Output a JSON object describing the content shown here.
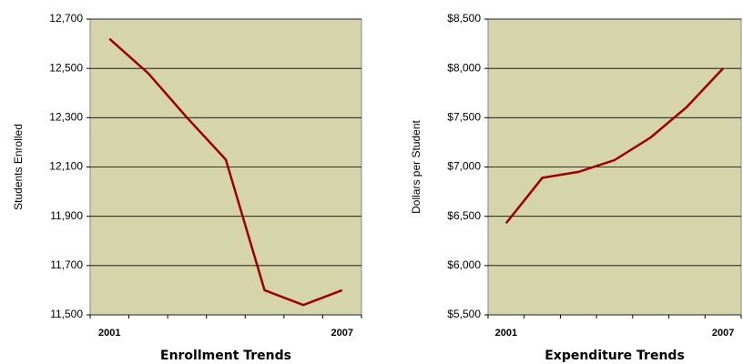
{
  "chart_data": [
    {
      "type": "line",
      "title": "Enrollment Trends",
      "y_label": "Students Enrolled",
      "categories": [
        "2001",
        null,
        null,
        null,
        null,
        null,
        "2007"
      ],
      "series": [
        {
          "name": "Students Enrolled",
          "color": "#990000",
          "values": [
            12620,
            12480,
            12300,
            12130,
            11600,
            11540,
            11600
          ]
        }
      ],
      "ylim": [
        11500,
        12700
      ],
      "yticks": [
        {
          "value": 11500,
          "label": "11,500"
        },
        {
          "value": 11700,
          "label": "11,700"
        },
        {
          "value": 11900,
          "label": "11,900"
        },
        {
          "value": 12100,
          "label": "12,100"
        },
        {
          "value": 12300,
          "label": "12,300"
        },
        {
          "value": 12500,
          "label": "12,500"
        },
        {
          "value": 12700,
          "label": "12,700"
        }
      ],
      "grid": true,
      "plot_color": "#d6d4aa"
    },
    {
      "type": "line",
      "title": "Expenditure Trends",
      "y_label": "Dollars per Student",
      "categories": [
        "2001",
        null,
        null,
        null,
        null,
        null,
        "2007"
      ],
      "series": [
        {
          "name": "Dollars per Student",
          "color": "#990000",
          "values": [
            6430,
            6890,
            6950,
            7070,
            7300,
            7610,
            8000
          ]
        }
      ],
      "ylim": [
        5500,
        8500
      ],
      "yticks": [
        {
          "value": 5500,
          "label": "$5,500"
        },
        {
          "value": 6000,
          "label": "$6,000"
        },
        {
          "value": 6500,
          "label": "$6,500"
        },
        {
          "value": 7000,
          "label": "$7,000"
        },
        {
          "value": 7500,
          "label": "$7,500"
        },
        {
          "value": 8000,
          "label": "$8,000"
        },
        {
          "value": 8500,
          "label": "$8,500"
        }
      ],
      "grid": true,
      "plot_color": "#d6d4aa"
    }
  ]
}
